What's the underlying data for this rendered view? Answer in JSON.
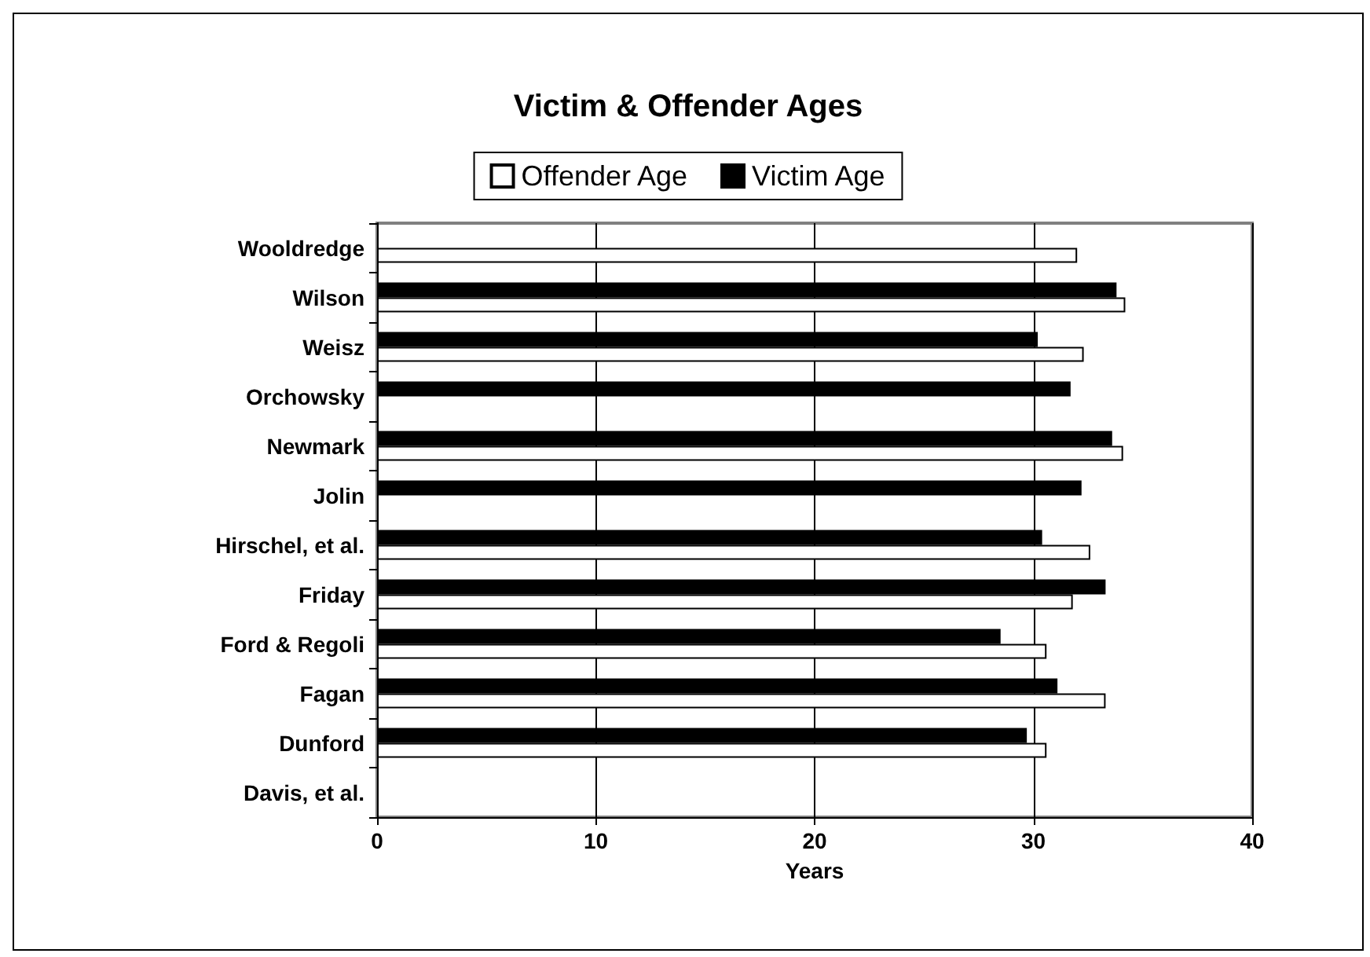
{
  "chart_data": {
    "type": "bar",
    "orientation": "horizontal",
    "title": "Victim & Offender Ages",
    "xlabel": "Years",
    "categories": [
      "Wooldredge",
      "Wilson",
      "Weisz",
      "Orchowsky",
      "Newmark",
      "Jolin",
      "Hirschel, et al.",
      "Friday",
      "Ford & Regoli",
      "Fagan",
      "Dunford",
      "Davis, et al."
    ],
    "series": [
      {
        "name": "Offender Age",
        "color": "#ffffff",
        "values": [
          32.0,
          34.2,
          32.3,
          null,
          34.1,
          null,
          32.6,
          31.8,
          30.6,
          33.3,
          30.6,
          null
        ]
      },
      {
        "name": "Victim Age",
        "color": "#000000",
        "values": [
          null,
          33.8,
          30.2,
          31.7,
          33.6,
          32.2,
          30.4,
          33.3,
          28.5,
          31.1,
          29.7,
          null
        ]
      }
    ],
    "xlim": [
      0,
      40
    ],
    "xticks": [
      0,
      10,
      20,
      30,
      40
    ],
    "grid": "x",
    "legend": "top"
  }
}
